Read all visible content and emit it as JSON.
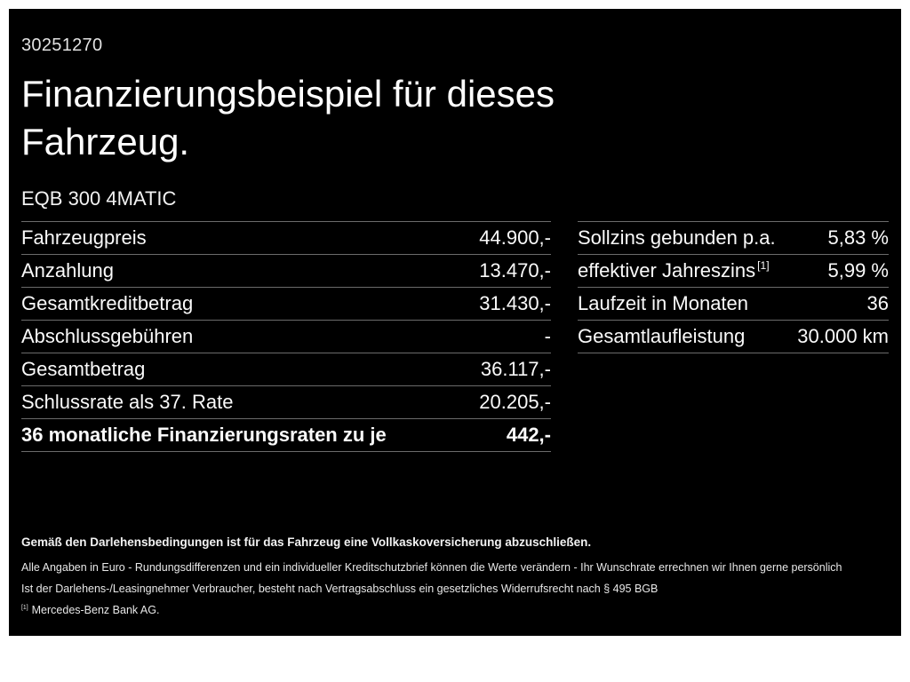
{
  "page": {
    "id_number": "30251270",
    "title": "Finanzierungsbeispiel für dieses Fahrzeug.",
    "model": "EQB 300 4MATIC"
  },
  "left_table": {
    "rows": [
      {
        "label": "Fahrzeugpreis",
        "value": "44.900,-"
      },
      {
        "label": "Anzahlung",
        "value": "13.470,-"
      },
      {
        "label": "Gesamtkreditbetrag",
        "value": "31.430,-"
      },
      {
        "label": "Abschlussgebühren",
        "value": "-"
      },
      {
        "label": "Gesamtbetrag",
        "value": "36.117,-"
      },
      {
        "label": "Schlussrate als 37. Rate",
        "value": "20.205,-"
      },
      {
        "label": "36 monatliche Finanzierungsraten zu je",
        "value": "442,-"
      }
    ]
  },
  "right_table": {
    "rows": [
      {
        "label": "Sollzins gebunden p.a.",
        "value": "5,83 %"
      },
      {
        "label": "effektiver Jahreszins",
        "sup": "[1]",
        "value": "5,99 %"
      },
      {
        "label": "Laufzeit in Monaten",
        "value": "36"
      },
      {
        "label": "Gesamtlaufleistung",
        "value": "30.000 km"
      }
    ]
  },
  "footnotes": {
    "insurance_note": "Gemäß den Darlehensbedingungen ist für das Fahrzeug eine Vollkaskoversicherung abzuschließen.",
    "line2": "Alle Angaben in Euro - Rundungsdifferenzen und ein individueller Kreditschutzbrief können die Werte verändern - Ihr Wunschrate errechnen wir Ihnen gerne persönlich",
    "line3": "Ist der Darlehens-/Leasingnehmer Verbraucher, besteht nach Vertragsabschluss ein gesetzliches Widerrufsrecht nach § 495 BGB",
    "ref_marker": "[1]",
    "ref_text": "Mercedes-Benz Bank AG."
  },
  "colors": {
    "background": "#000000",
    "frame": "#ffffff",
    "text": "#f5f5f5",
    "divider": "#6b6b6b"
  }
}
